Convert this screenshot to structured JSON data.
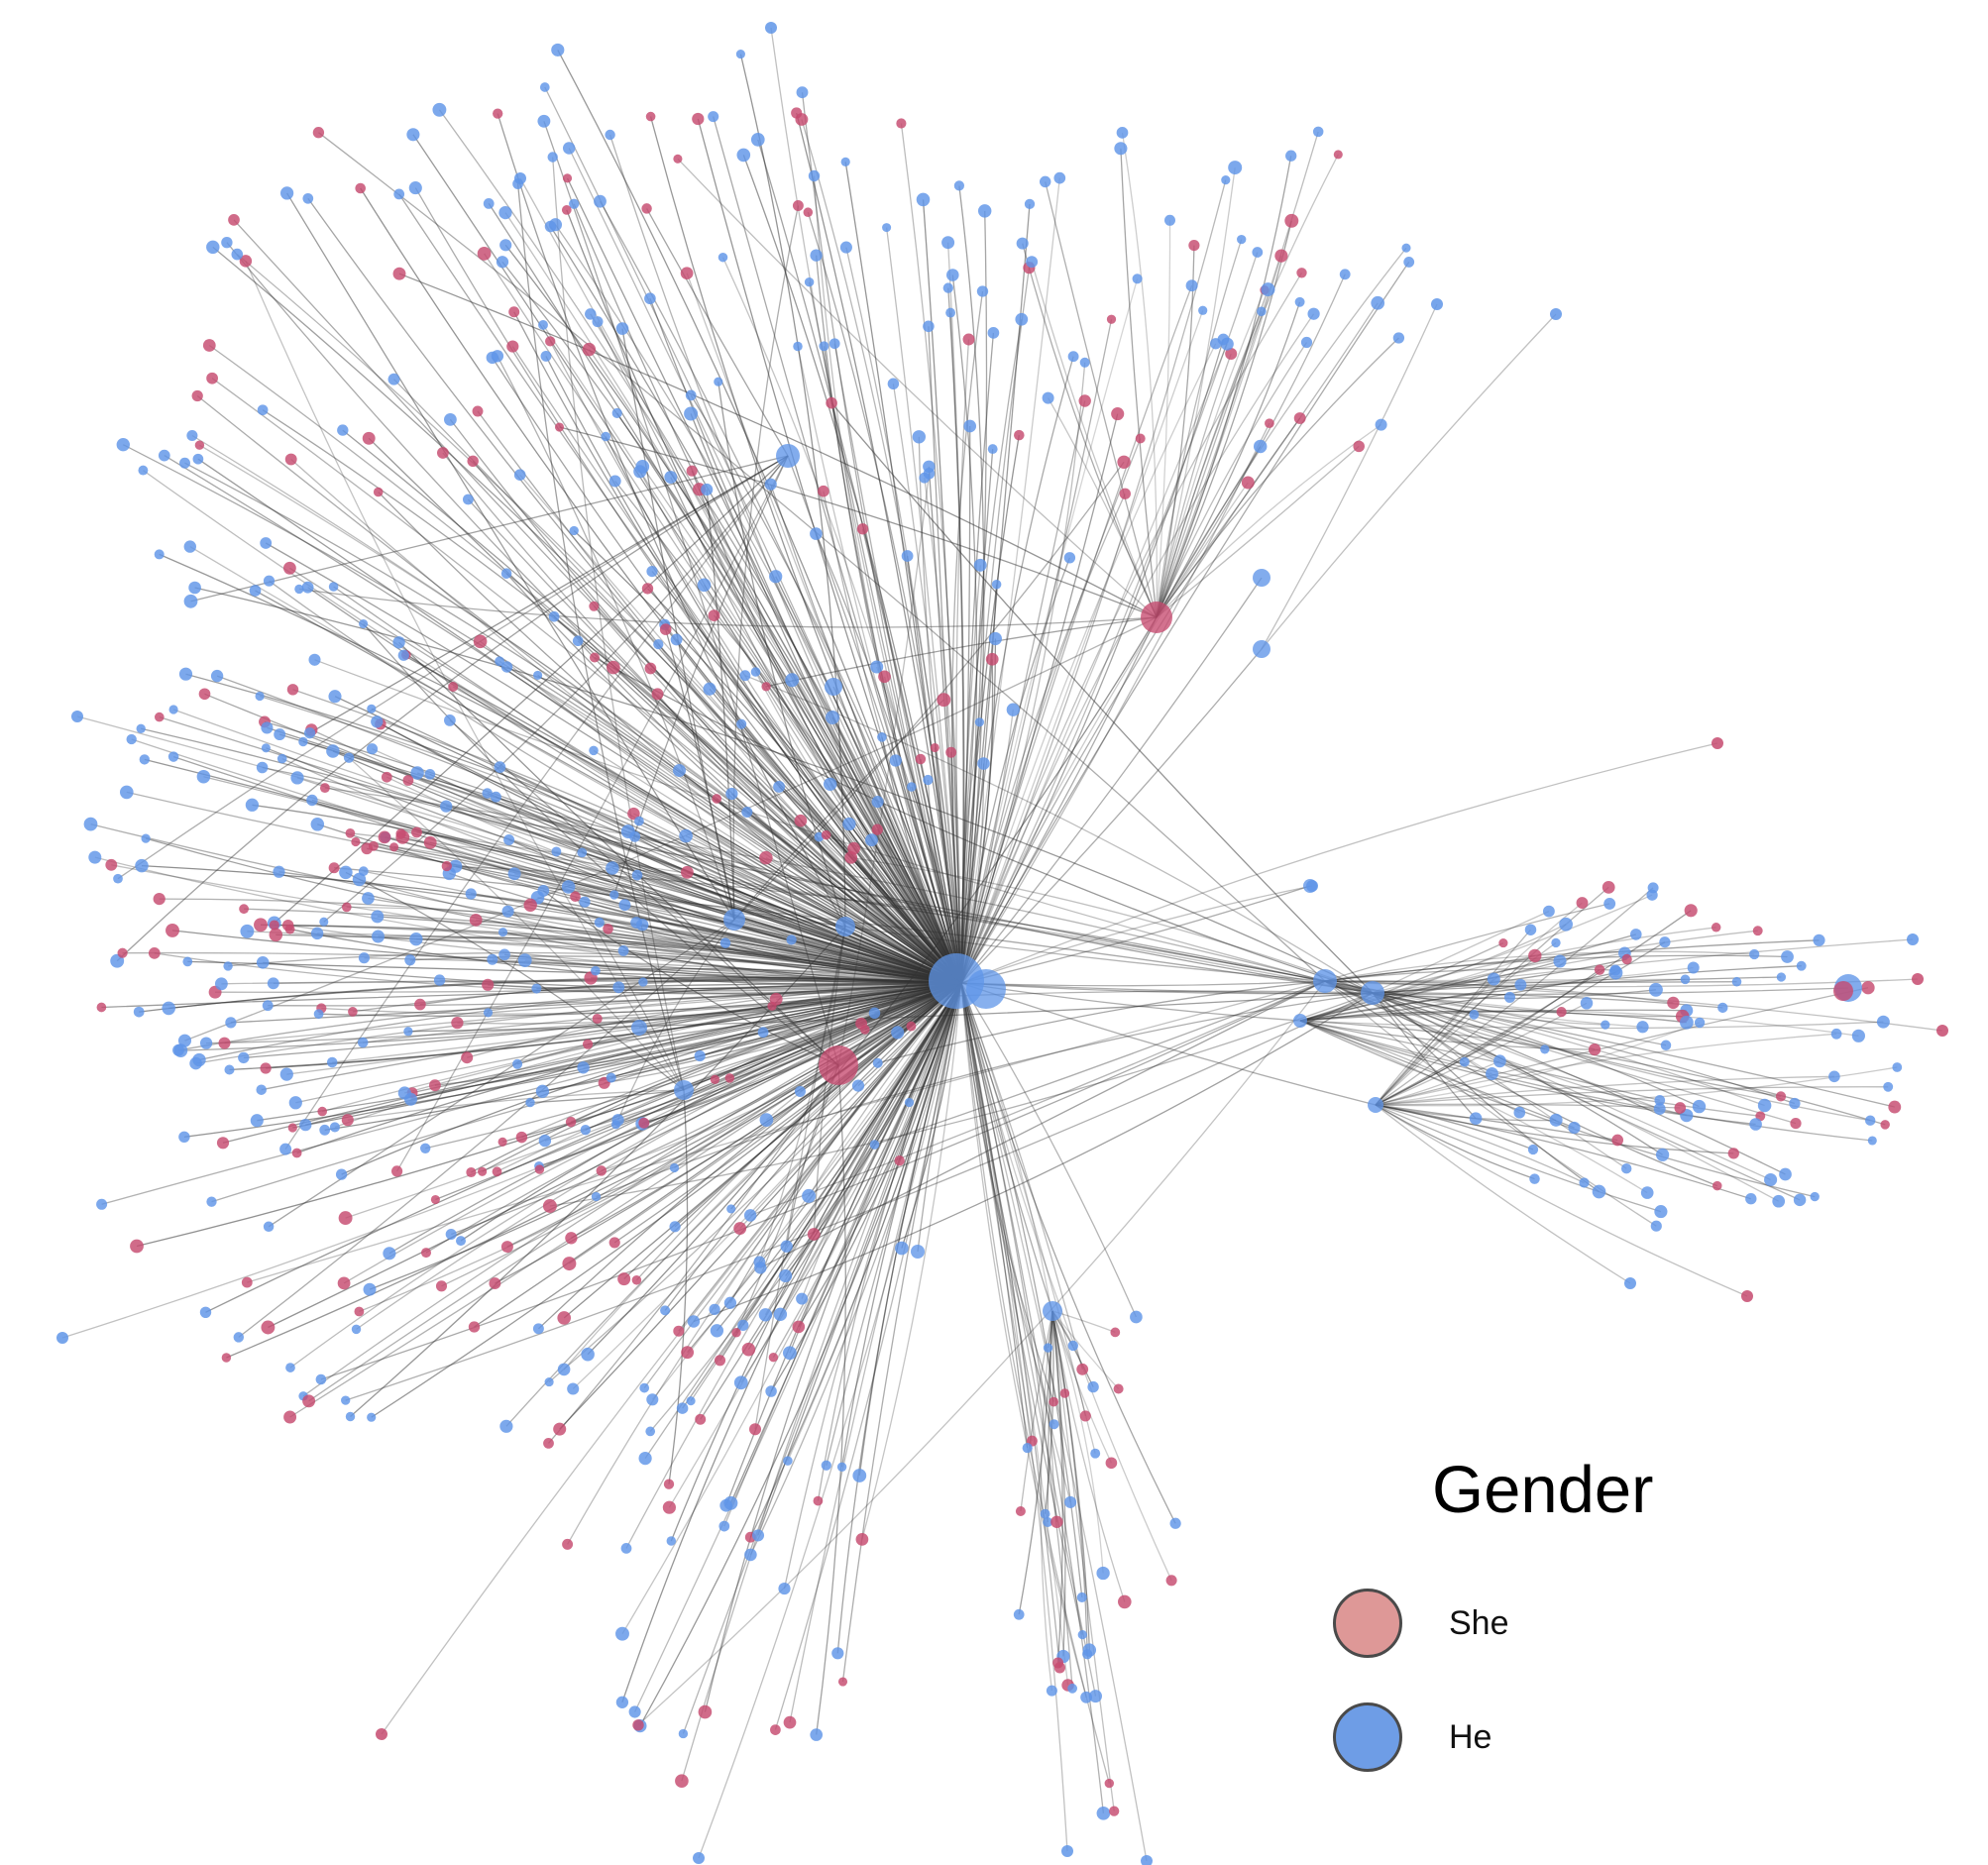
{
  "legend": {
    "title": "Gender",
    "items": [
      {
        "key": "she",
        "label": "She",
        "color": "#de9897"
      },
      {
        "key": "he",
        "label": "He",
        "color": "#6e9de6"
      }
    ]
  },
  "colors": {
    "she_node": "#c64a6f",
    "he_node": "#5f95e8",
    "edge": "#333333"
  }
}
